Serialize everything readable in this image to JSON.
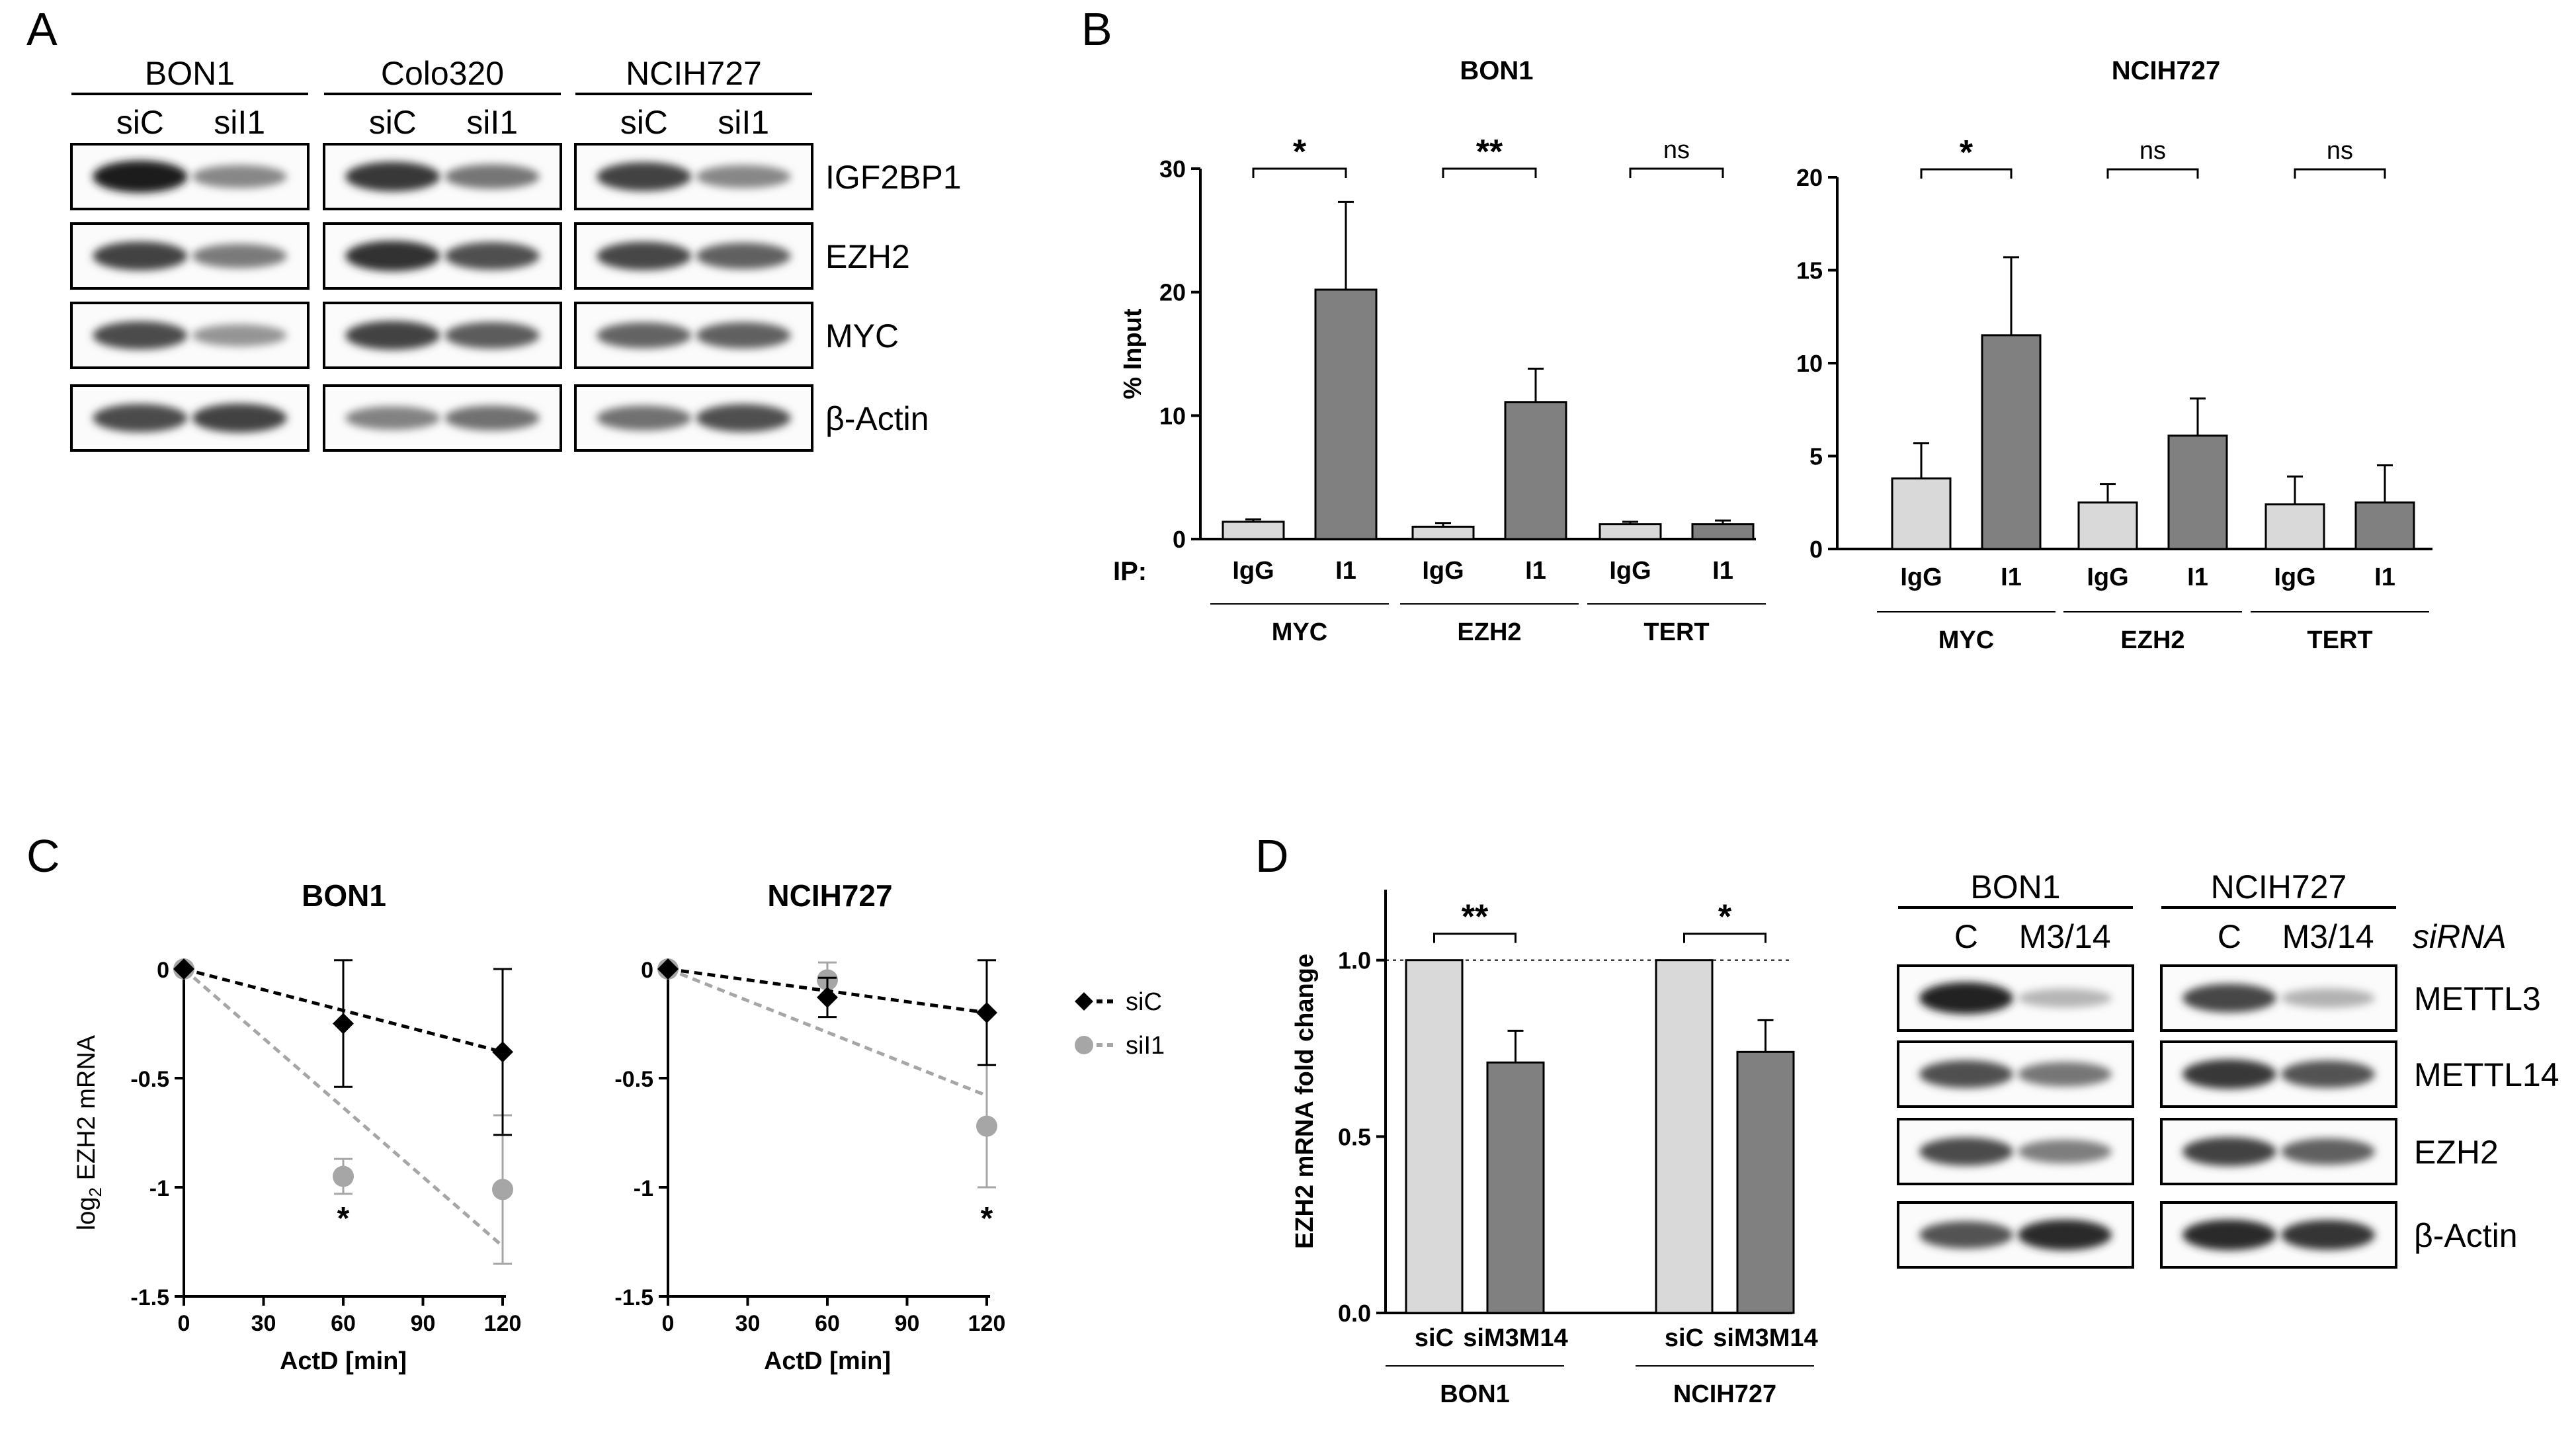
{
  "panels": {
    "A": {
      "letter": "A",
      "cell_lines": [
        "BON1",
        "Colo320",
        "NCIH727"
      ],
      "lanes": [
        "siC",
        "siI1"
      ],
      "proteins": [
        "IGF2BP1",
        "EZH2",
        "MYC",
        "β-Actin"
      ],
      "band_intensity": [
        [
          [
            0.92,
            0.42
          ],
          [
            0.78,
            0.5
          ],
          [
            0.74,
            0.42
          ]
        ],
        [
          [
            0.74,
            0.48
          ],
          [
            0.82,
            0.68
          ],
          [
            0.72,
            0.6
          ]
        ],
        [
          [
            0.7,
            0.36
          ],
          [
            0.74,
            0.62
          ],
          [
            0.58,
            0.6
          ]
        ],
        [
          [
            0.7,
            0.74
          ],
          [
            0.44,
            0.52
          ],
          [
            0.52,
            0.68
          ]
        ]
      ]
    },
    "B": {
      "letter": "B",
      "ip_label": "IP:",
      "group_labels": [
        "MYC",
        "EZH2",
        "TERT"
      ],
      "bar_labels": [
        "IgG",
        "I1"
      ]
    },
    "C": {
      "letter": "C",
      "legend": [
        "siC",
        "siI1"
      ]
    },
    "D": {
      "letter": "D",
      "siRNA_label": "siRNA",
      "blot_cell_lines": [
        "BON1",
        "NCIH727"
      ],
      "blot_lanes": [
        "C",
        "M3/14"
      ],
      "blot_proteins": [
        "METTL3",
        "METTL14",
        "EZH2",
        "β-Actin"
      ],
      "band_intensity": [
        [
          [
            0.9,
            0.2
          ],
          [
            0.72,
            0.22
          ]
        ],
        [
          [
            0.68,
            0.5
          ],
          [
            0.78,
            0.66
          ]
        ],
        [
          [
            0.7,
            0.46
          ],
          [
            0.74,
            0.6
          ]
        ],
        [
          [
            0.66,
            0.84
          ],
          [
            0.84,
            0.8
          ]
        ]
      ]
    }
  },
  "chart_data": [
    {
      "id": "B-BON1",
      "type": "bar",
      "title": "BON1",
      "xlabel": "",
      "ylabel": "% Input",
      "ylim": [
        0,
        30
      ],
      "yticks": [
        0,
        10,
        20,
        30
      ],
      "groups": [
        "MYC",
        "EZH2",
        "TERT"
      ],
      "series": [
        {
          "name": "IgG",
          "color": "#d9d9d9",
          "values": [
            1.4,
            1.0,
            1.2
          ],
          "errors": [
            0.2,
            0.3,
            0.2
          ]
        },
        {
          "name": "I1",
          "color": "#808080",
          "values": [
            20.2,
            11.1,
            1.2
          ],
          "errors": [
            7.1,
            2.7,
            0.3
          ]
        }
      ],
      "significance": [
        "*",
        "**",
        "ns"
      ]
    },
    {
      "id": "B-NCIH727",
      "type": "bar",
      "title": "NCIH727",
      "xlabel": "",
      "ylabel": "",
      "ylim": [
        0,
        20
      ],
      "yticks": [
        0,
        5,
        10,
        15,
        20
      ],
      "groups": [
        "MYC",
        "EZH2",
        "TERT"
      ],
      "series": [
        {
          "name": "IgG",
          "color": "#d9d9d9",
          "values": [
            3.8,
            2.5,
            2.4
          ],
          "errors": [
            1.9,
            1.0,
            1.5
          ]
        },
        {
          "name": "I1",
          "color": "#808080",
          "values": [
            11.5,
            6.1,
            2.5
          ],
          "errors": [
            4.2,
            2.0,
            2.0
          ]
        }
      ],
      "significance": [
        "*",
        "ns",
        "ns"
      ]
    },
    {
      "id": "C-BON1",
      "type": "line",
      "title": "BON1",
      "xlabel": "ActD [min]",
      "ylabel": "log2 EZH2 mRNA",
      "xlim": [
        0,
        120
      ],
      "ylim": [
        -1.5,
        0
      ],
      "xticks": [
        0,
        30,
        60,
        90,
        120
      ],
      "yticks": [
        0,
        -0.5,
        -1,
        -1.5
      ],
      "ytick_labels": [
        "0",
        "-0.5",
        "-1",
        "-1.5"
      ],
      "series": [
        {
          "name": "siC",
          "color": "#000000",
          "marker": "diamond",
          "x": [
            0,
            60,
            120
          ],
          "y": [
            0,
            -0.25,
            -0.38
          ],
          "errors": [
            0,
            0.29,
            0.38
          ],
          "fit": [
            [
              0,
              0
            ],
            [
              120,
              -0.38
            ]
          ]
        },
        {
          "name": "siI1",
          "color": "#a6a6a6",
          "marker": "circle",
          "x": [
            0,
            60,
            120
          ],
          "y": [
            0,
            -0.95,
            -1.01
          ],
          "errors": [
            0,
            0.08,
            0.34
          ],
          "fit": [
            [
              0,
              0
            ],
            [
              120,
              -1.27
            ]
          ]
        }
      ],
      "annotations": [
        {
          "text": "*",
          "x": 60
        }
      ]
    },
    {
      "id": "C-NCIH727",
      "type": "line",
      "title": "NCIH727",
      "xlabel": "ActD [min]",
      "ylabel": "",
      "xlim": [
        0,
        120
      ],
      "ylim": [
        -1.5,
        0
      ],
      "xticks": [
        0,
        30,
        60,
        90,
        120
      ],
      "yticks": [
        0,
        -0.5,
        -1,
        -1.5
      ],
      "ytick_labels": [
        "0",
        "-0.5",
        "-1",
        "-1.5"
      ],
      "series": [
        {
          "name": "siC",
          "color": "#000000",
          "marker": "diamond",
          "x": [
            0,
            60,
            120
          ],
          "y": [
            0,
            -0.13,
            -0.2
          ],
          "errors": [
            0,
            0.09,
            0.24
          ],
          "fit": [
            [
              0,
              0
            ],
            [
              120,
              -0.2
            ]
          ]
        },
        {
          "name": "siI1",
          "color": "#a6a6a6",
          "marker": "circle",
          "x": [
            0,
            60,
            120
          ],
          "y": [
            0,
            -0.05,
            -0.72
          ],
          "errors": [
            0,
            0.08,
            0.28
          ],
          "fit": [
            [
              0,
              0
            ],
            [
              120,
              -0.58
            ]
          ]
        }
      ],
      "annotations": [
        {
          "text": "*",
          "x": 120
        }
      ]
    },
    {
      "id": "D-qPCR",
      "type": "bar",
      "title": "",
      "xlabel": "",
      "ylabel": "EZH2 mRNA fold change",
      "ylim": [
        0,
        1.2
      ],
      "yticks": [
        0,
        0.5,
        1.0
      ],
      "ytick_labels": [
        "0.0",
        "0.5",
        "1.0"
      ],
      "reference_line": 1.0,
      "groups": [
        "BON1",
        "NCIH727"
      ],
      "series": [
        {
          "name": "siC",
          "color": "#d9d9d9",
          "values": [
            1.0,
            1.0
          ],
          "errors": [
            0,
            0
          ]
        },
        {
          "name": "siM3M14",
          "color": "#808080",
          "values": [
            0.71,
            0.74
          ],
          "errors": [
            0.09,
            0.09
          ]
        }
      ],
      "significance": [
        "**",
        "*"
      ]
    }
  ]
}
